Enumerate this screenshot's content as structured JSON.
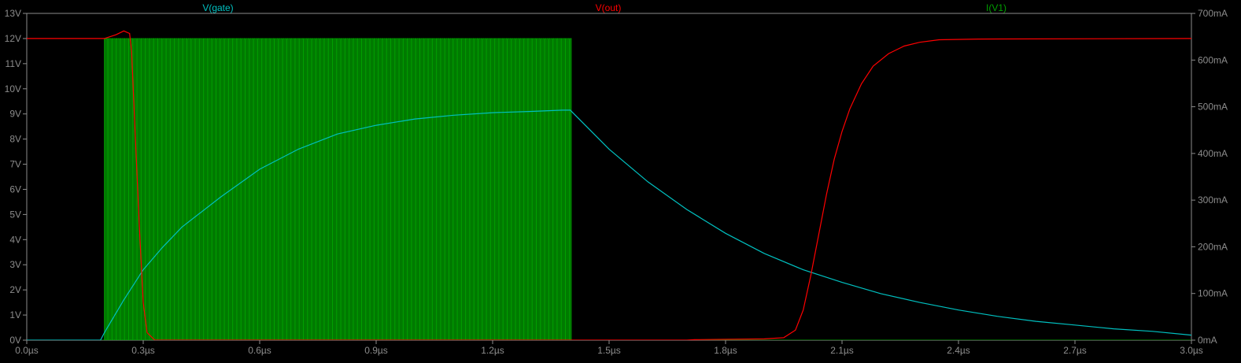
{
  "chart_data": {
    "type": "line",
    "x_ticks": [
      "0.0µs",
      "0.3µs",
      "0.6µs",
      "0.9µs",
      "1.2µs",
      "1.5µs",
      "1.8µs",
      "2.1µs",
      "2.4µs",
      "2.7µs",
      "3.0µs"
    ],
    "x_range": [
      0,
      3.0
    ],
    "y_left_ticks": [
      "0V",
      "1V",
      "2V",
      "3V",
      "4V",
      "5V",
      "6V",
      "7V",
      "8V",
      "9V",
      "10V",
      "11V",
      "12V",
      "13V"
    ],
    "y_left_range": [
      0,
      13
    ],
    "y_right_ticks": [
      "0mA",
      "100mA",
      "200mA",
      "300mA",
      "400mA",
      "500mA",
      "600mA",
      "700mA"
    ],
    "y_right_range": [
      0,
      700
    ],
    "grid": false,
    "series": [
      {
        "name": "V(gate)",
        "color": "#00c0c0",
        "axis": "left",
        "points": [
          [
            0,
            0
          ],
          [
            0.19,
            0
          ],
          [
            0.2,
            0.3
          ],
          [
            0.25,
            1.6
          ],
          [
            0.3,
            2.8
          ],
          [
            0.35,
            3.7
          ],
          [
            0.4,
            4.5
          ],
          [
            0.5,
            5.7
          ],
          [
            0.6,
            6.8
          ],
          [
            0.7,
            7.6
          ],
          [
            0.8,
            8.2
          ],
          [
            0.9,
            8.55
          ],
          [
            1.0,
            8.8
          ],
          [
            1.1,
            8.95
          ],
          [
            1.2,
            9.05
          ],
          [
            1.3,
            9.1
          ],
          [
            1.38,
            9.15
          ],
          [
            1.4,
            9.15
          ],
          [
            1.5,
            7.6
          ],
          [
            1.6,
            6.3
          ],
          [
            1.7,
            5.2
          ],
          [
            1.8,
            4.25
          ],
          [
            1.9,
            3.45
          ],
          [
            2.0,
            2.8
          ],
          [
            2.1,
            2.3
          ],
          [
            2.2,
            1.85
          ],
          [
            2.3,
            1.5
          ],
          [
            2.4,
            1.2
          ],
          [
            2.5,
            0.95
          ],
          [
            2.6,
            0.75
          ],
          [
            2.7,
            0.6
          ],
          [
            2.8,
            0.45
          ],
          [
            2.9,
            0.35
          ],
          [
            3.0,
            0.2
          ]
        ]
      },
      {
        "name": "V(out)",
        "color": "#ff0000",
        "axis": "left",
        "points": [
          [
            0,
            12
          ],
          [
            0.2,
            12
          ],
          [
            0.23,
            12.15
          ],
          [
            0.25,
            12.3
          ],
          [
            0.265,
            12.2
          ],
          [
            0.27,
            11.5
          ],
          [
            0.28,
            8
          ],
          [
            0.29,
            4.5
          ],
          [
            0.3,
            1.5
          ],
          [
            0.31,
            0.3
          ],
          [
            0.33,
            0
          ],
          [
            1.7,
            0
          ],
          [
            1.72,
            0.02
          ],
          [
            1.9,
            0.05
          ],
          [
            1.95,
            0.1
          ],
          [
            1.98,
            0.4
          ],
          [
            2.0,
            1.2
          ],
          [
            2.02,
            2.6
          ],
          [
            2.04,
            4.2
          ],
          [
            2.06,
            5.8
          ],
          [
            2.08,
            7.2
          ],
          [
            2.1,
            8.3
          ],
          [
            2.12,
            9.2
          ],
          [
            2.15,
            10.2
          ],
          [
            2.18,
            10.9
          ],
          [
            2.22,
            11.4
          ],
          [
            2.26,
            11.7
          ],
          [
            2.3,
            11.85
          ],
          [
            2.35,
            11.95
          ],
          [
            2.45,
            11.98
          ],
          [
            3.0,
            12
          ]
        ]
      },
      {
        "name": "I(V1)",
        "color": "#00a000",
        "axis": "right",
        "switching_start": 0.2,
        "switching_end": 1.4,
        "switching_period": 0.005,
        "peak": 646,
        "low": 0
      }
    ]
  }
}
